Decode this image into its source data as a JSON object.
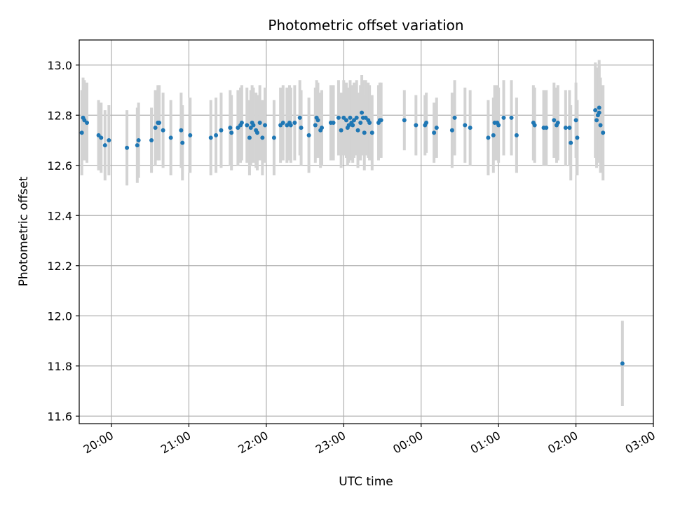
{
  "chart_data": {
    "type": "scatter",
    "title": "Photometric offset variation",
    "xlabel": "UTC time",
    "ylabel": "Photometric offset",
    "xlim": [
      "19:35",
      "03:00"
    ],
    "ylim": [
      11.57,
      13.1
    ],
    "x_ticks": [
      "20:00",
      "21:00",
      "22:00",
      "23:00",
      "00:00",
      "01:00",
      "02:00",
      "03:00"
    ],
    "y_ticks": [
      "11.6",
      "11.8",
      "12.0",
      "12.2",
      "12.4",
      "12.6",
      "12.8",
      "13.0"
    ],
    "grid": true,
    "colors": {
      "point": "#1f77b4",
      "errorbar": "#d3d3d3",
      "grid": "#b0b0b0"
    },
    "series": [
      {
        "points": [
          {
            "t": "19:37",
            "y": 12.73,
            "err": 0.17
          },
          {
            "t": "19:38",
            "y": 12.79,
            "err": 0.16
          },
          {
            "t": "19:39",
            "y": 12.78,
            "err": 0.16
          },
          {
            "t": "19:41",
            "y": 12.77,
            "err": 0.16
          },
          {
            "t": "19:50",
            "y": 12.72,
            "err": 0.14
          },
          {
            "t": "19:52",
            "y": 12.71,
            "err": 0.14
          },
          {
            "t": "19:55",
            "y": 12.68,
            "err": 0.14
          },
          {
            "t": "19:58",
            "y": 12.7,
            "err": 0.14
          },
          {
            "t": "20:12",
            "y": 12.67,
            "err": 0.15
          },
          {
            "t": "20:20",
            "y": 12.68,
            "err": 0.15
          },
          {
            "t": "20:21",
            "y": 12.7,
            "err": 0.15
          },
          {
            "t": "20:31",
            "y": 12.7,
            "err": 0.13
          },
          {
            "t": "20:34",
            "y": 12.75,
            "err": 0.15
          },
          {
            "t": "20:36",
            "y": 12.77,
            "err": 0.15
          },
          {
            "t": "20:37",
            "y": 12.77,
            "err": 0.15
          },
          {
            "t": "20:40",
            "y": 12.74,
            "err": 0.15
          },
          {
            "t": "20:46",
            "y": 12.71,
            "err": 0.15
          },
          {
            "t": "20:54",
            "y": 12.74,
            "err": 0.15
          },
          {
            "t": "20:55",
            "y": 12.69,
            "err": 0.15
          },
          {
            "t": "21:01",
            "y": 12.72,
            "err": 0.15
          },
          {
            "t": "21:17",
            "y": 12.71,
            "err": 0.15
          },
          {
            "t": "21:21",
            "y": 12.72,
            "err": 0.15
          },
          {
            "t": "21:25",
            "y": 12.74,
            "err": 0.15
          },
          {
            "t": "21:32",
            "y": 12.75,
            "err": 0.15
          },
          {
            "t": "21:33",
            "y": 12.73,
            "err": 0.15
          },
          {
            "t": "21:38",
            "y": 12.75,
            "err": 0.15
          },
          {
            "t": "21:40",
            "y": 12.76,
            "err": 0.15
          },
          {
            "t": "21:41",
            "y": 12.77,
            "err": 0.15
          },
          {
            "t": "21:45",
            "y": 12.76,
            "err": 0.15
          },
          {
            "t": "21:47",
            "y": 12.71,
            "err": 0.15
          },
          {
            "t": "21:48",
            "y": 12.75,
            "err": 0.15
          },
          {
            "t": "21:49",
            "y": 12.77,
            "err": 0.15
          },
          {
            "t": "21:50",
            "y": 12.76,
            "err": 0.15
          },
          {
            "t": "21:52",
            "y": 12.74,
            "err": 0.15
          },
          {
            "t": "21:53",
            "y": 12.73,
            "err": 0.15
          },
          {
            "t": "21:55",
            "y": 12.77,
            "err": 0.15
          },
          {
            "t": "21:57",
            "y": 12.71,
            "err": 0.15
          },
          {
            "t": "21:59",
            "y": 12.76,
            "err": 0.15
          },
          {
            "t": "22:06",
            "y": 12.71,
            "err": 0.15
          },
          {
            "t": "22:11",
            "y": 12.76,
            "err": 0.15
          },
          {
            "t": "22:13",
            "y": 12.77,
            "err": 0.15
          },
          {
            "t": "22:16",
            "y": 12.76,
            "err": 0.15
          },
          {
            "t": "22:18",
            "y": 12.77,
            "err": 0.15
          },
          {
            "t": "22:19",
            "y": 12.76,
            "err": 0.15
          },
          {
            "t": "22:22",
            "y": 12.77,
            "err": 0.15
          },
          {
            "t": "22:26",
            "y": 12.79,
            "err": 0.15
          },
          {
            "t": "22:27",
            "y": 12.75,
            "err": 0.15
          },
          {
            "t": "22:33",
            "y": 12.72,
            "err": 0.15
          },
          {
            "t": "22:38",
            "y": 12.76,
            "err": 0.15
          },
          {
            "t": "22:39",
            "y": 12.79,
            "err": 0.15
          },
          {
            "t": "22:40",
            "y": 12.78,
            "err": 0.15
          },
          {
            "t": "22:42",
            "y": 12.74,
            "err": 0.15
          },
          {
            "t": "22:43",
            "y": 12.75,
            "err": 0.15
          },
          {
            "t": "22:50",
            "y": 12.77,
            "err": 0.15
          },
          {
            "t": "22:52",
            "y": 12.77,
            "err": 0.15
          },
          {
            "t": "22:56",
            "y": 12.79,
            "err": 0.15
          },
          {
            "t": "22:58",
            "y": 12.74,
            "err": 0.15
          },
          {
            "t": "23:00",
            "y": 12.79,
            "err": 0.15
          },
          {
            "t": "23:02",
            "y": 12.78,
            "err": 0.15
          },
          {
            "t": "23:03",
            "y": 12.75,
            "err": 0.15
          },
          {
            "t": "23:04",
            "y": 12.76,
            "err": 0.15
          },
          {
            "t": "23:05",
            "y": 12.79,
            "err": 0.15
          },
          {
            "t": "23:06",
            "y": 12.77,
            "err": 0.15
          },
          {
            "t": "23:07",
            "y": 12.76,
            "err": 0.15
          },
          {
            "t": "23:08",
            "y": 12.78,
            "err": 0.15
          },
          {
            "t": "23:10",
            "y": 12.79,
            "err": 0.15
          },
          {
            "t": "23:11",
            "y": 12.74,
            "err": 0.15
          },
          {
            "t": "23:13",
            "y": 12.77,
            "err": 0.15
          },
          {
            "t": "23:14",
            "y": 12.81,
            "err": 0.15
          },
          {
            "t": "23:15",
            "y": 12.79,
            "err": 0.15
          },
          {
            "t": "23:16",
            "y": 12.73,
            "err": 0.15
          },
          {
            "t": "23:17",
            "y": 12.79,
            "err": 0.15
          },
          {
            "t": "23:19",
            "y": 12.78,
            "err": 0.15
          },
          {
            "t": "23:20",
            "y": 12.77,
            "err": 0.15
          },
          {
            "t": "23:22",
            "y": 12.73,
            "err": 0.15
          },
          {
            "t": "23:27",
            "y": 12.77,
            "err": 0.15
          },
          {
            "t": "23:28",
            "y": 12.78,
            "err": 0.15
          },
          {
            "t": "23:29",
            "y": 12.78,
            "err": 0.15
          },
          {
            "t": "23:47",
            "y": 12.78,
            "err": 0.12
          },
          {
            "t": "23:56",
            "y": 12.76,
            "err": 0.12
          },
          {
            "t": "00:03",
            "y": 12.76,
            "err": 0.12
          },
          {
            "t": "00:04",
            "y": 12.77,
            "err": 0.12
          },
          {
            "t": "00:10",
            "y": 12.73,
            "err": 0.12
          },
          {
            "t": "00:12",
            "y": 12.75,
            "err": 0.12
          },
          {
            "t": "00:24",
            "y": 12.74,
            "err": 0.15
          },
          {
            "t": "00:26",
            "y": 12.79,
            "err": 0.15
          },
          {
            "t": "00:34",
            "y": 12.76,
            "err": 0.15
          },
          {
            "t": "00:38",
            "y": 12.75,
            "err": 0.15
          },
          {
            "t": "00:52",
            "y": 12.71,
            "err": 0.15
          },
          {
            "t": "00:56",
            "y": 12.72,
            "err": 0.15
          },
          {
            "t": "00:57",
            "y": 12.77,
            "err": 0.15
          },
          {
            "t": "00:59",
            "y": 12.77,
            "err": 0.15
          },
          {
            "t": "01:00",
            "y": 12.76,
            "err": 0.15
          },
          {
            "t": "01:04",
            "y": 12.79,
            "err": 0.15
          },
          {
            "t": "01:10",
            "y": 12.79,
            "err": 0.15
          },
          {
            "t": "01:14",
            "y": 12.72,
            "err": 0.15
          },
          {
            "t": "01:27",
            "y": 12.77,
            "err": 0.15
          },
          {
            "t": "01:28",
            "y": 12.76,
            "err": 0.15
          },
          {
            "t": "01:35",
            "y": 12.75,
            "err": 0.15
          },
          {
            "t": "01:37",
            "y": 12.75,
            "err": 0.15
          },
          {
            "t": "01:43",
            "y": 12.78,
            "err": 0.15
          },
          {
            "t": "01:45",
            "y": 12.76,
            "err": 0.15
          },
          {
            "t": "01:46",
            "y": 12.77,
            "err": 0.15
          },
          {
            "t": "01:52",
            "y": 12.75,
            "err": 0.15
          },
          {
            "t": "01:55",
            "y": 12.75,
            "err": 0.15
          },
          {
            "t": "01:56",
            "y": 12.69,
            "err": 0.15
          },
          {
            "t": "02:00",
            "y": 12.78,
            "err": 0.15
          },
          {
            "t": "02:01",
            "y": 12.71,
            "err": 0.15
          },
          {
            "t": "02:15",
            "y": 12.82,
            "err": 0.19
          },
          {
            "t": "02:16",
            "y": 12.78,
            "err": 0.19
          },
          {
            "t": "02:17",
            "y": 12.8,
            "err": 0.19
          },
          {
            "t": "02:18",
            "y": 12.81,
            "err": 0.19
          },
          {
            "t": "02:18",
            "y": 12.83,
            "err": 0.19
          },
          {
            "t": "02:19",
            "y": 12.76,
            "err": 0.19
          },
          {
            "t": "02:21",
            "y": 12.73,
            "err": 0.19
          },
          {
            "t": "02:36",
            "y": 11.81,
            "err": 0.17
          }
        ]
      }
    ]
  }
}
